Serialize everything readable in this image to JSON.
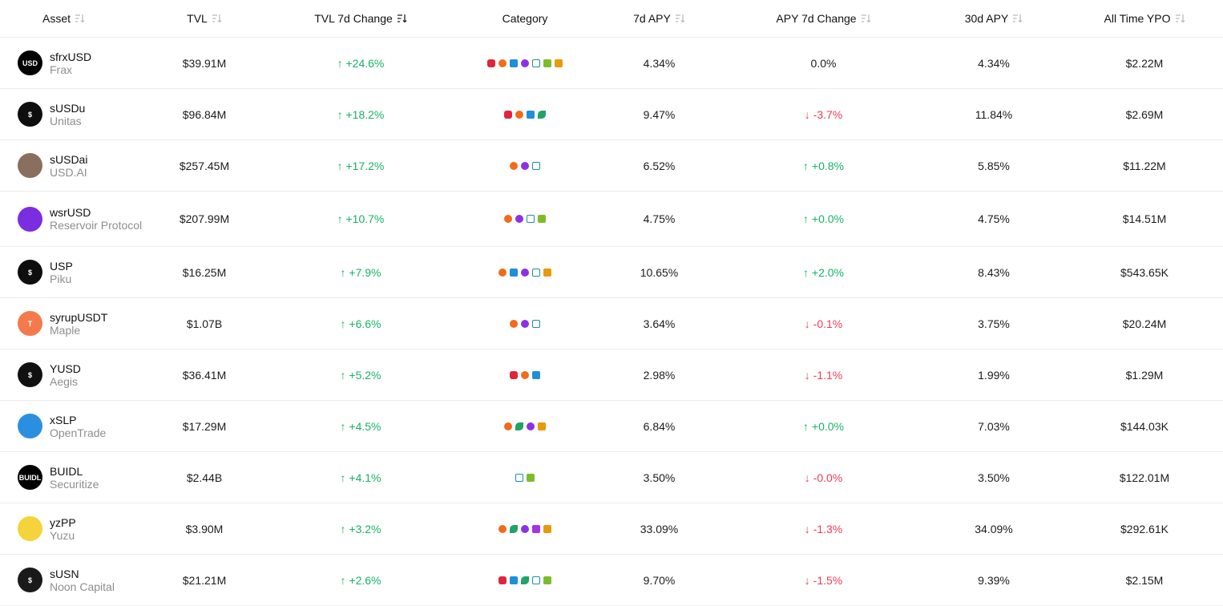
{
  "headers": {
    "asset": "Asset",
    "tvl": "TVL",
    "tvl_change": "TVL 7d Change",
    "category": "Category",
    "apy7d": "7d APY",
    "apy_change": "APY 7d Change",
    "apy30d": "30d APY",
    "ypo": "All Time YPO"
  },
  "colors": {
    "up": "#16b364",
    "down": "#ef3b55",
    "border": "#ececec"
  },
  "rows": [
    {
      "symbol": "sfrxUSD",
      "protocol": "Frax",
      "logo_text": "USD",
      "logo_color": "#000000",
      "tvl": "$39.91M",
      "tvl_change": "↑ +24.6%",
      "tvl_dir": "up",
      "categories": [
        "robot-icon",
        "bitcoin-icon",
        "scale-icon",
        "gear-icon",
        "chart-icon",
        "bank-icon",
        "box-icon"
      ],
      "apy7d": "4.34%",
      "apy_change": "0.0%",
      "apy_dir": "flat",
      "apy30d": "4.34%",
      "ypo": "$2.22M"
    },
    {
      "symbol": "sUSDu",
      "protocol": "Unitas",
      "logo_text": "$",
      "logo_color": "#0e0e0e",
      "tvl": "$96.84M",
      "tvl_change": "↑ +18.2%",
      "tvl_dir": "up",
      "categories": [
        "robot-icon",
        "bitcoin-icon",
        "scale-icon",
        "sprout-icon"
      ],
      "apy7d": "9.47%",
      "apy_change": "↓ -3.7%",
      "apy_dir": "down",
      "apy30d": "11.84%",
      "ypo": "$2.69M"
    },
    {
      "symbol": "sUSDai",
      "protocol": "USD.AI",
      "logo_text": "",
      "logo_color": "#8a6e5e",
      "tvl": "$257.45M",
      "tvl_change": "↑ +17.2%",
      "tvl_dir": "up",
      "categories": [
        "bitcoin-icon",
        "gear-icon",
        "chart-icon"
      ],
      "apy7d": "6.52%",
      "apy_change": "↑ +0.8%",
      "apy_dir": "up",
      "apy30d": "5.85%",
      "ypo": "$11.22M"
    },
    {
      "symbol": "wsrUSD",
      "protocol": "Reservoir Protocol",
      "logo_text": "",
      "logo_color": "#7a2ee0",
      "tvl": "$207.99M",
      "tvl_change": "↑ +10.7%",
      "tvl_dir": "up",
      "categories": [
        "bitcoin-icon",
        "gear-icon",
        "chart-icon",
        "bank-icon"
      ],
      "apy7d": "4.75%",
      "apy_change": "↑ +0.0%",
      "apy_dir": "up",
      "apy30d": "4.75%",
      "ypo": "$14.51M"
    },
    {
      "symbol": "USP",
      "protocol": "Piku",
      "logo_text": "$",
      "logo_color": "#0e0e0e",
      "tvl": "$16.25M",
      "tvl_change": "↑ +7.9%",
      "tvl_dir": "up",
      "categories": [
        "bitcoin-icon",
        "scale-icon",
        "gear-icon",
        "chart-icon",
        "box-icon"
      ],
      "apy7d": "10.65%",
      "apy_change": "↑ +2.0%",
      "apy_dir": "up",
      "apy30d": "8.43%",
      "ypo": "$543.65K"
    },
    {
      "symbol": "syrupUSDT",
      "protocol": "Maple",
      "logo_text": "T",
      "logo_color": "#f47a4c",
      "tvl": "$1.07B",
      "tvl_change": "↑ +6.6%",
      "tvl_dir": "up",
      "categories": [
        "bitcoin-icon",
        "gear-icon",
        "chart-icon"
      ],
      "apy7d": "3.64%",
      "apy_change": "↓ -0.1%",
      "apy_dir": "down",
      "apy30d": "3.75%",
      "ypo": "$20.24M"
    },
    {
      "symbol": "YUSD",
      "protocol": "Aegis",
      "logo_text": "$",
      "logo_color": "#111111",
      "tvl": "$36.41M",
      "tvl_change": "↑ +5.2%",
      "tvl_dir": "up",
      "categories": [
        "robot-icon",
        "bitcoin-icon",
        "scale-icon"
      ],
      "apy7d": "2.98%",
      "apy_change": "↓ -1.1%",
      "apy_dir": "down",
      "apy30d": "1.99%",
      "ypo": "$1.29M"
    },
    {
      "symbol": "xSLP",
      "protocol": "OpenTrade",
      "logo_text": "",
      "logo_color": "#2b8fe0",
      "tvl": "$17.29M",
      "tvl_change": "↑ +4.5%",
      "tvl_dir": "up",
      "categories": [
        "bitcoin-icon",
        "sprout-icon",
        "gear-icon",
        "box-icon"
      ],
      "apy7d": "6.84%",
      "apy_change": "↑ +0.0%",
      "apy_dir": "up",
      "apy30d": "7.03%",
      "ypo": "$144.03K"
    },
    {
      "symbol": "BUIDL",
      "protocol": "Securitize",
      "logo_text": "BUIDL",
      "logo_color": "#000000",
      "tvl": "$2.44B",
      "tvl_change": "↑ +4.1%",
      "tvl_dir": "up",
      "categories": [
        "chart-icon",
        "bank-icon"
      ],
      "apy7d": "3.50%",
      "apy_change": "↓ -0.0%",
      "apy_dir": "down",
      "apy30d": "3.50%",
      "ypo": "$122.01M"
    },
    {
      "symbol": "yzPP",
      "protocol": "Yuzu",
      "logo_text": "",
      "logo_color": "#f5d33a",
      "tvl": "$3.90M",
      "tvl_change": "↑ +3.2%",
      "tvl_dir": "up",
      "categories": [
        "bitcoin-icon",
        "sprout-icon",
        "gear-icon",
        "bars-icon",
        "box-icon"
      ],
      "apy7d": "33.09%",
      "apy_change": "↓ -1.3%",
      "apy_dir": "down",
      "apy30d": "34.09%",
      "ypo": "$292.61K"
    },
    {
      "symbol": "sUSN",
      "protocol": "Noon Capital",
      "logo_text": "$",
      "logo_color": "#1a1a1a",
      "tvl": "$21.21M",
      "tvl_change": "↑ +2.6%",
      "tvl_dir": "up",
      "categories": [
        "robot-icon",
        "scale-icon",
        "sprout-icon",
        "chart-icon",
        "bank-icon"
      ],
      "apy7d": "9.70%",
      "apy_change": "↓ -1.5%",
      "apy_dir": "down",
      "apy30d": "9.39%",
      "ypo": "$2.15M"
    }
  ]
}
